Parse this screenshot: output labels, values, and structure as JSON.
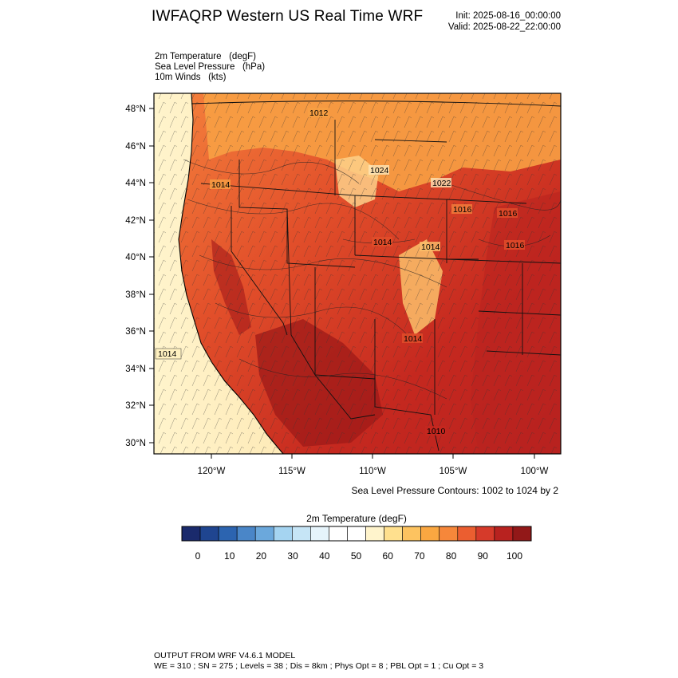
{
  "header": {
    "title": "IWFAQRP Western US Real Time WRF",
    "init": "Init: 2025-08-16_00:00:00",
    "valid": "Valid: 2025-08-22_22:00:00"
  },
  "fields": [
    "2m Temperature   (degF)",
    "Sea Level Pressure   (hPa)",
    "10m Winds   (kts)"
  ],
  "map": {
    "lat_labels": [
      "48°N",
      "46°N",
      "44°N",
      "42°N",
      "40°N",
      "38°N",
      "36°N",
      "34°N",
      "32°N",
      "30°N"
    ],
    "lon_labels": [
      "120°W",
      "115°W",
      "110°W",
      "105°W",
      "100°W"
    ],
    "pressure_labels": [
      "1024",
      "1022",
      "1014",
      "1016",
      "1016",
      "1016",
      "1014",
      "1014",
      "1014",
      "1014",
      "1012",
      "1010"
    ],
    "colors": {
      "ocean_cool": "#fff1c0",
      "ocean_mid": "#fdd48a",
      "warm": "#f4803c",
      "hot": "#e24f2a",
      "hottest": "#c5281f",
      "extreme": "#9e1a18"
    }
  },
  "contour_note": "Sea Level Pressure Contours: 1002 to 1024 by 2",
  "colorbar": {
    "title": "2m Temperature  (degF)",
    "colors": [
      "#1a2a6c",
      "#1f4590",
      "#2c64b0",
      "#4a86c8",
      "#6ba8dc",
      "#a5d4f1",
      "#c6e5f6",
      "#e6f4fb",
      "#ffffff",
      "#ffffff",
      "#fff4cc",
      "#ffe08e",
      "#fdc360",
      "#faa741",
      "#f6873a",
      "#eb5e30",
      "#d63a2a",
      "#b8221f",
      "#921818"
    ],
    "ticks": [
      "0",
      "10",
      "20",
      "30",
      "40",
      "50",
      "60",
      "70",
      "80",
      "90",
      "100"
    ]
  },
  "footer": {
    "line1": "OUTPUT FROM WRF V4.6.1 MODEL",
    "line2": "WE = 310 ; SN = 275 ; Levels = 38 ; Dis = 8km ; Phys Opt = 8 ; PBL Opt = 1 ; Cu Opt = 3"
  }
}
